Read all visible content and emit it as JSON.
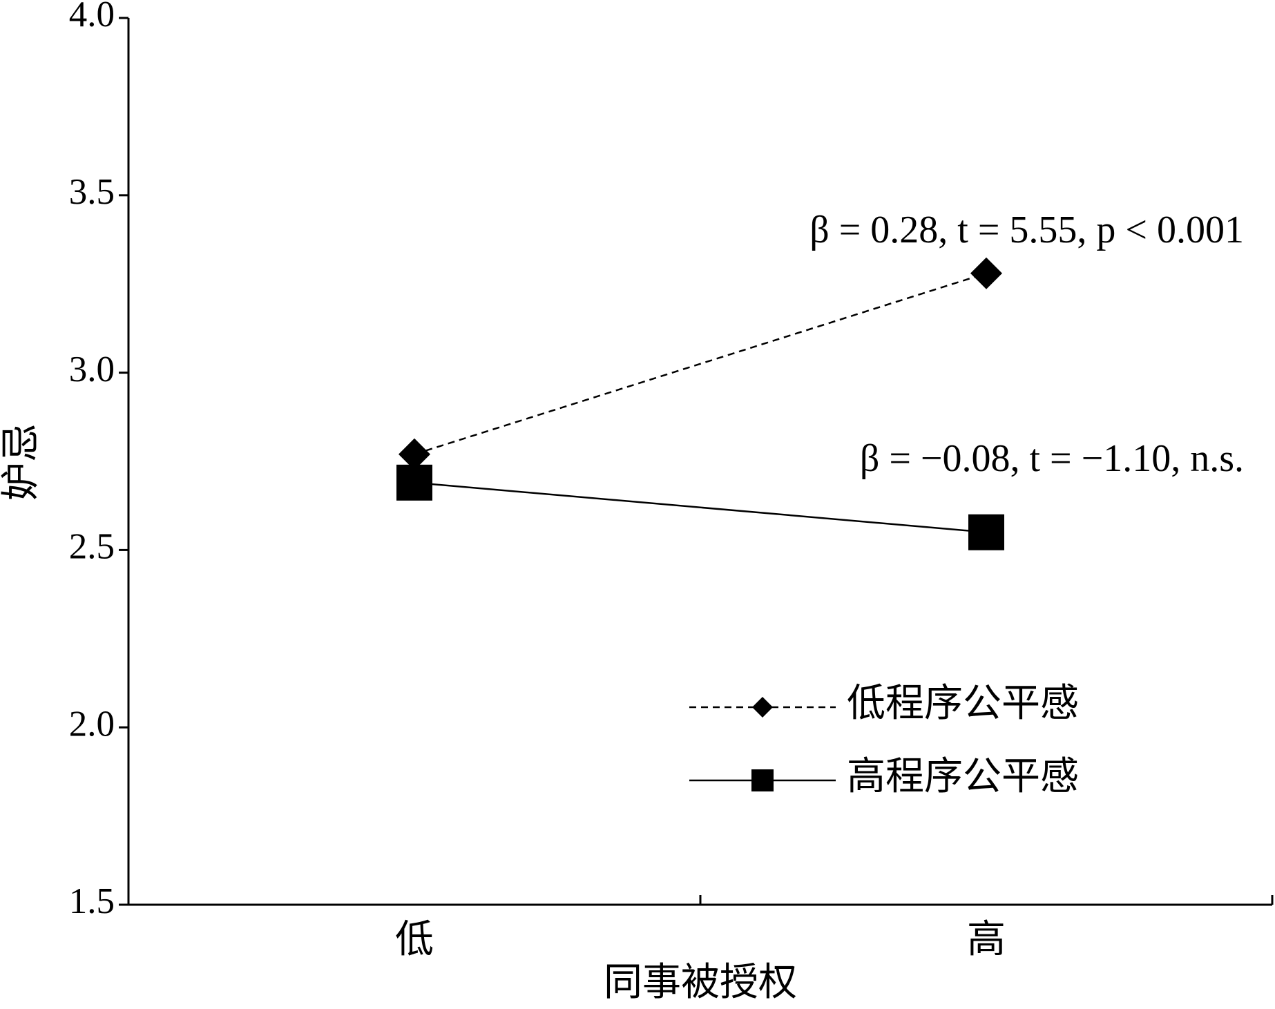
{
  "chart_data": {
    "type": "line",
    "x_label": "同事被授权",
    "y_label": "妒忌",
    "categories": [
      "低",
      "高"
    ],
    "series": [
      {
        "name": "低程序公平感",
        "color": "#000000",
        "line_style": "dashed",
        "marker": "diamond",
        "values": [
          2.77,
          3.28
        ]
      },
      {
        "name": "高程序公平感",
        "color": "#000000",
        "line_style": "solid",
        "marker": "square",
        "values": [
          2.69,
          2.55
        ]
      }
    ],
    "annotations": [
      "β = 0.28, t = 5.55, p < 0.001",
      "β = −0.08, t = −1.10, n.s."
    ],
    "ylim": [
      1.5,
      4.0
    ],
    "yticks": [
      1.5,
      {
        "value": 2.0,
        "label": "2.0"
      },
      2.5,
      {
        "value": 3.0,
        "label": "3.0"
      },
      3.5,
      {
        "value": 4.0,
        "label": "4.0"
      }
    ],
    "grid": false,
    "legend": "lower right"
  }
}
